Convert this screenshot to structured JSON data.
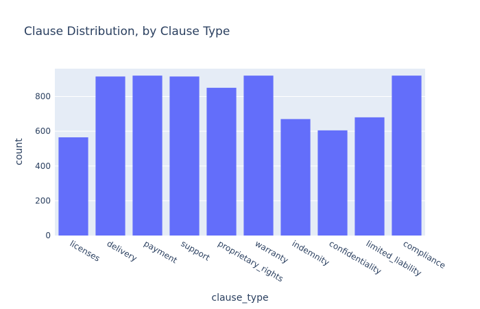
{
  "chart_data": {
    "type": "bar",
    "title": "Clause Distribution, by Clause Type",
    "xlabel": "clause_type",
    "ylabel": "count",
    "categories": [
      "licenses",
      "delivery",
      "payment",
      "support",
      "proprietary_rights",
      "warranty",
      "indemnity",
      "confidentiality",
      "limited_liability",
      "compliance"
    ],
    "values": [
      565,
      915,
      920,
      915,
      850,
      920,
      670,
      605,
      680,
      920
    ],
    "ylim": [
      0,
      960
    ],
    "yticks": [
      0,
      200,
      400,
      600,
      800
    ],
    "grid": true,
    "bar_color": "#636efa",
    "plot_bg": "#e5ecf6",
    "grid_color": "#ffffff"
  }
}
